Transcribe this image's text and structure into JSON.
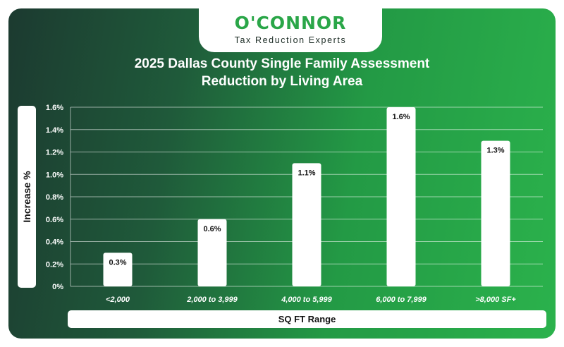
{
  "brand": {
    "name": "O'CONNOR",
    "tagline": "Tax Reduction Experts",
    "accent_color": "#2aa648"
  },
  "chart_data": {
    "type": "bar",
    "title_line1": "2025 Dallas County Single Family Assessment",
    "title_line2": "Reduction by Living Area",
    "xlabel": "SQ FT Range",
    "ylabel": "Increase %",
    "categories": [
      "<2,000",
      "2,000 to 3,999",
      "4,000 to 5,999",
      "6,000 to 7,999",
      ">8,000 SF+"
    ],
    "values": [
      0.3,
      0.6,
      1.1,
      1.6,
      1.3
    ],
    "data_labels": [
      "0.3%",
      "0.6%",
      "1.1%",
      "1.6%",
      "1.3%"
    ],
    "ylim": [
      0,
      1.6
    ],
    "yticks": [
      0,
      0.2,
      0.4,
      0.6,
      0.8,
      1.0,
      1.2,
      1.4,
      1.6
    ],
    "ytick_labels": [
      "0%",
      "0.2%",
      "0.4%",
      "0.6%",
      "0.8%",
      "1.0%",
      "1.2%",
      "1.4%",
      "1.6%"
    ],
    "grid": true,
    "bar_color": "#ffffff"
  }
}
